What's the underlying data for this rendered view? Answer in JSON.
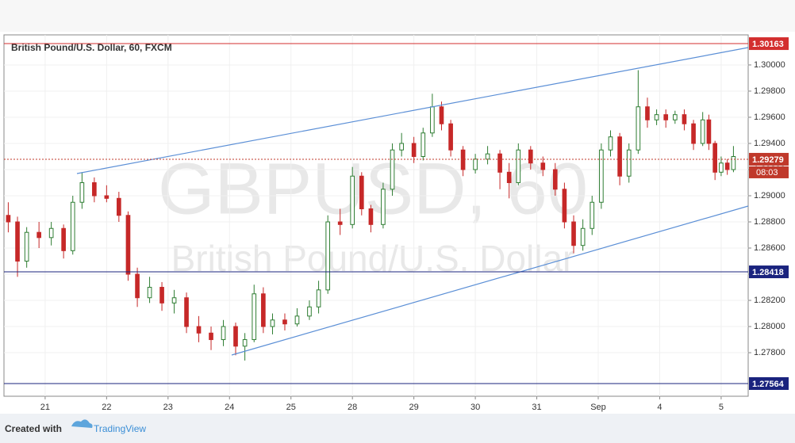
{
  "chart_data": {
    "type": "candlestick",
    "title": "British Pound/U.S. Dollar, 60, FXCM",
    "watermark": "GBPUSD, 60",
    "watermark_subtitle": "British Pound/U.S. Dollar",
    "footer_prefix": "Created with",
    "footer_brand": "TradingView",
    "countdown": "08:03",
    "up_color": "#2e7d32",
    "down_color": "#c62828",
    "xlim": [
      -0.67,
      11.44
    ],
    "ylim": [
      1.27467,
      1.3023
    ],
    "xticks": [
      {
        "value": 0,
        "label": "21"
      },
      {
        "value": 1,
        "label": "22"
      },
      {
        "value": 2,
        "label": "23"
      },
      {
        "value": 3,
        "label": "24"
      },
      {
        "value": 4,
        "label": "25"
      },
      {
        "value": 5,
        "label": "28"
      },
      {
        "value": 6,
        "label": "29"
      },
      {
        "value": 7,
        "label": "30"
      },
      {
        "value": 8,
        "label": "31"
      },
      {
        "value": 9,
        "label": "Sep"
      },
      {
        "value": 10,
        "label": "4"
      },
      {
        "value": 11,
        "label": "5"
      }
    ],
    "yticks": [
      {
        "value": 1.278,
        "label": "1.27800"
      },
      {
        "value": 1.28,
        "label": "1.28000"
      },
      {
        "value": 1.282,
        "label": "1.28200"
      },
      {
        "value": 1.284,
        "label": "1.28400"
      },
      {
        "value": 1.286,
        "label": "1.28600"
      },
      {
        "value": 1.288,
        "label": "1.28800"
      },
      {
        "value": 1.29,
        "label": "1.29000"
      },
      {
        "value": 1.292,
        "label": "1.29200"
      },
      {
        "value": 1.294,
        "label": "1.29400"
      },
      {
        "value": 1.296,
        "label": "1.29600"
      },
      {
        "value": 1.298,
        "label": "1.29800"
      },
      {
        "value": 1.3,
        "label": "1.30000"
      }
    ],
    "levels": [
      {
        "value": 1.30163,
        "color": "#d32f2f",
        "style": "solid"
      },
      {
        "value": 1.29279,
        "color": "#c0392b",
        "style": "dotted"
      },
      {
        "value": 1.28418,
        "color": "#1a237e",
        "style": "solid"
      },
      {
        "value": 1.27564,
        "color": "#1a237e",
        "style": "solid"
      }
    ],
    "candles": [
      [
        -0.6,
        1.2885,
        1.2895,
        1.2872,
        1.288
      ],
      [
        -0.45,
        1.288,
        1.2884,
        1.2838,
        1.285
      ],
      [
        -0.3,
        1.285,
        1.2876,
        1.2845,
        1.2872
      ],
      [
        -0.1,
        1.2872,
        1.288,
        1.286,
        1.2868
      ],
      [
        0.1,
        1.2868,
        1.288,
        1.2862,
        1.2875
      ],
      [
        0.3,
        1.2875,
        1.2878,
        1.2852,
        1.2858
      ],
      [
        0.45,
        1.2858,
        1.29,
        1.2855,
        1.2895
      ],
      [
        0.6,
        1.2895,
        1.2918,
        1.289,
        1.291
      ],
      [
        0.8,
        1.291,
        1.2914,
        1.2895,
        1.29
      ],
      [
        1.0,
        1.29,
        1.2908,
        1.2895,
        1.2898
      ],
      [
        1.2,
        1.2898,
        1.2903,
        1.288,
        1.2885
      ],
      [
        1.35,
        1.2885,
        1.2888,
        1.2835,
        1.284
      ],
      [
        1.5,
        1.284,
        1.2845,
        1.2815,
        1.2822
      ],
      [
        1.7,
        1.2822,
        1.2838,
        1.2818,
        1.283
      ],
      [
        1.9,
        1.283,
        1.2834,
        1.2812,
        1.2818
      ],
      [
        2.1,
        1.2818,
        1.2828,
        1.281,
        1.2822
      ],
      [
        2.3,
        1.2822,
        1.2826,
        1.2795,
        1.28
      ],
      [
        2.5,
        1.28,
        1.2808,
        1.2788,
        1.2795
      ],
      [
        2.7,
        1.2795,
        1.28,
        1.2782,
        1.279
      ],
      [
        2.9,
        1.279,
        1.2805,
        1.2785,
        1.28
      ],
      [
        3.1,
        1.28,
        1.2803,
        1.2778,
        1.2785
      ],
      [
        3.25,
        1.2785,
        1.2795,
        1.2774,
        1.279
      ],
      [
        3.4,
        1.279,
        1.2832,
        1.2788,
        1.2825
      ],
      [
        3.55,
        1.2825,
        1.283,
        1.2795,
        1.28
      ],
      [
        3.7,
        1.28,
        1.281,
        1.2794,
        1.2805
      ],
      [
        3.9,
        1.2805,
        1.281,
        1.2797,
        1.2802
      ],
      [
        4.1,
        1.2802,
        1.2814,
        1.28,
        1.2808
      ],
      [
        4.3,
        1.2808,
        1.282,
        1.2805,
        1.2815
      ],
      [
        4.45,
        1.2815,
        1.2835,
        1.281,
        1.2828
      ],
      [
        4.6,
        1.2828,
        1.2885,
        1.2825,
        1.288
      ],
      [
        4.8,
        1.288,
        1.289,
        1.287,
        1.2878
      ],
      [
        5.0,
        1.2878,
        1.2922,
        1.2875,
        1.2915
      ],
      [
        5.15,
        1.2915,
        1.2918,
        1.2885,
        1.289
      ],
      [
        5.3,
        1.289,
        1.2893,
        1.2872,
        1.2878
      ],
      [
        5.5,
        1.2878,
        1.291,
        1.2875,
        1.2905
      ],
      [
        5.65,
        1.2905,
        1.294,
        1.29,
        1.2935
      ],
      [
        5.8,
        1.2935,
        1.2948,
        1.293,
        1.294
      ],
      [
        6.0,
        1.294,
        1.2945,
        1.2925,
        1.293
      ],
      [
        6.15,
        1.293,
        1.2952,
        1.2927,
        1.2948
      ],
      [
        6.3,
        1.2948,
        1.2978,
        1.2945,
        1.2968
      ],
      [
        6.45,
        1.2968,
        1.2972,
        1.295,
        1.2955
      ],
      [
        6.6,
        1.2955,
        1.2958,
        1.293,
        1.2935
      ],
      [
        6.8,
        1.2935,
        1.2938,
        1.2915,
        1.292
      ],
      [
        7.0,
        1.292,
        1.2932,
        1.2917,
        1.2928
      ],
      [
        7.2,
        1.2928,
        1.2938,
        1.2924,
        1.2932
      ],
      [
        7.4,
        1.2932,
        1.2935,
        1.2905,
        1.2918
      ],
      [
        7.55,
        1.2918,
        1.2925,
        1.2898,
        1.291
      ],
      [
        7.7,
        1.291,
        1.294,
        1.2908,
        1.2935
      ],
      [
        7.9,
        1.2935,
        1.2938,
        1.292,
        1.2925
      ],
      [
        8.1,
        1.2925,
        1.293,
        1.2915,
        1.292
      ],
      [
        8.3,
        1.292,
        1.2925,
        1.29,
        1.2905
      ],
      [
        8.45,
        1.2905,
        1.291,
        1.2875,
        1.288
      ],
      [
        8.6,
        1.288,
        1.2885,
        1.2856,
        1.2862
      ],
      [
        8.75,
        1.2862,
        1.2882,
        1.2858,
        1.2875
      ],
      [
        8.9,
        1.2875,
        1.29,
        1.287,
        1.2895
      ],
      [
        9.05,
        1.2895,
        1.294,
        1.289,
        1.2935
      ],
      [
        9.2,
        1.2935,
        1.295,
        1.293,
        1.2945
      ],
      [
        9.35,
        1.2945,
        1.2948,
        1.2908,
        1.2915
      ],
      [
        9.5,
        1.2915,
        1.294,
        1.291,
        1.2935
      ],
      [
        9.65,
        1.2935,
        1.2996,
        1.2932,
        1.2968
      ],
      [
        9.8,
        1.2968,
        1.2975,
        1.2952,
        1.2958
      ],
      [
        9.95,
        1.2958,
        1.2966,
        1.2954,
        1.2962
      ],
      [
        10.1,
        1.2962,
        1.2966,
        1.2952,
        1.2958
      ],
      [
        10.25,
        1.2958,
        1.2965,
        1.2955,
        1.2962
      ],
      [
        10.4,
        1.2962,
        1.2966,
        1.295,
        1.2955
      ],
      [
        10.55,
        1.2955,
        1.2958,
        1.2935,
        1.294
      ],
      [
        10.7,
        1.294,
        1.2964,
        1.2938,
        1.2958
      ],
      [
        10.8,
        1.2958,
        1.2962,
        1.2935,
        1.294
      ],
      [
        10.9,
        1.294,
        1.2942,
        1.2912,
        1.2918
      ],
      [
        11.0,
        1.2918,
        1.293,
        1.2915,
        1.2925
      ],
      [
        11.1,
        1.2925,
        1.2928,
        1.2916,
        1.292
      ],
      [
        11.2,
        1.292,
        1.2938,
        1.2918,
        1.293
      ]
    ]
  }
}
